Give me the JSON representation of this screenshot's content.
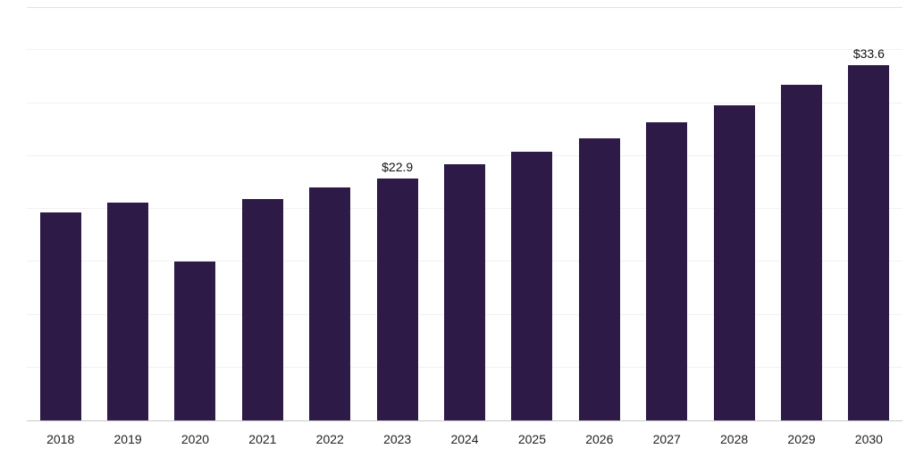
{
  "chart_data": {
    "type": "bar",
    "title": "",
    "xlabel": "",
    "ylabel": "",
    "categories": [
      "2018",
      "2019",
      "2020",
      "2021",
      "2022",
      "2023",
      "2024",
      "2025",
      "2026",
      "2027",
      "2028",
      "2029",
      "2030"
    ],
    "values": [
      19.7,
      20.6,
      15.0,
      20.9,
      22.0,
      22.9,
      24.2,
      25.4,
      26.7,
      28.2,
      29.8,
      31.7,
      33.6
    ],
    "point_labels": [
      null,
      null,
      null,
      null,
      null,
      "$22.9",
      null,
      null,
      null,
      null,
      null,
      null,
      "$33.6"
    ],
    "ylim": [
      0,
      39
    ],
    "gridline_values": [
      5,
      10,
      15,
      20,
      25,
      30,
      35
    ],
    "grid": "horizontal-faint",
    "legend_position": "none",
    "colors": {
      "bar": "#2e1a47",
      "gridline": "#f1f1f1",
      "axis_line": "#c8c8c8",
      "top_border": "#e2e2e2",
      "label_text": "#111111",
      "tick_text": "#222222"
    }
  }
}
